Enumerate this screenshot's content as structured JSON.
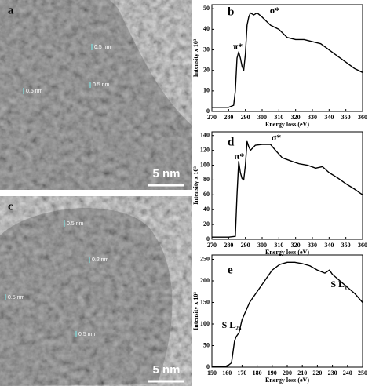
{
  "images": [
    {
      "panel_label": "a",
      "scale_bar": "5 nm",
      "annotations": [
        "0.5 nm",
        "0.5 nm",
        "0.5 nm"
      ]
    },
    {
      "panel_label": "c",
      "scale_bar": "5 nm",
      "annotations": [
        "0.5 nm",
        "0.2 nm",
        "0.5 nm",
        "0.5 nm"
      ]
    }
  ],
  "chart_data": [
    {
      "type": "line",
      "panel_label": "b",
      "x_label": "Energy loss (eV)",
      "y_label": "Intensity x 10³",
      "annotations": [
        "π*",
        "σ*"
      ],
      "x": [
        270,
        275,
        280,
        283,
        284,
        285,
        286,
        287,
        288,
        289,
        290,
        291,
        292,
        293,
        295,
        297,
        300,
        305,
        310,
        315,
        320,
        325,
        330,
        335,
        340,
        345,
        350,
        355,
        360
      ],
      "series": [
        {
          "color": "#000000",
          "values": [
            2,
            2,
            2,
            3,
            10,
            26,
            29,
            26,
            22,
            20,
            28,
            42,
            46,
            48,
            47,
            48,
            46,
            42,
            40,
            36,
            35,
            35,
            34,
            33,
            30,
            27,
            24,
            21,
            19
          ]
        }
      ],
      "xlim": [
        270,
        360
      ],
      "xticks": [
        270,
        280,
        290,
        300,
        310,
        320,
        330,
        340,
        350,
        360
      ],
      "ylim": [
        0,
        52
      ],
      "yticks": [
        0,
        10,
        20,
        30,
        40,
        50
      ]
    },
    {
      "type": "line",
      "panel_label": "d",
      "x_label": "Energy loss (eV)",
      "y_label": "Intensity x 10³",
      "annotations": [
        "π*",
        "σ*"
      ],
      "x": [
        270,
        275,
        280,
        284,
        285,
        286,
        287,
        288,
        289,
        290,
        291,
        292,
        293,
        296,
        300,
        305,
        308,
        312,
        318,
        322,
        327,
        332,
        336,
        340,
        345,
        350,
        355,
        360
      ],
      "series": [
        {
          "color": "#000000",
          "values": [
            3,
            3,
            3,
            4,
            60,
            105,
            90,
            82,
            80,
            100,
            132,
            125,
            120,
            127,
            128,
            128,
            120,
            110,
            105,
            102,
            100,
            96,
            98,
            90,
            83,
            75,
            68,
            60
          ]
        }
      ],
      "xlim": [
        270,
        360
      ],
      "xticks": [
        270,
        280,
        290,
        300,
        310,
        320,
        330,
        340,
        350,
        360
      ],
      "ylim": [
        0,
        145
      ],
      "yticks": [
        0,
        20,
        40,
        60,
        80,
        100,
        120,
        140
      ]
    },
    {
      "type": "line",
      "panel_label": "e",
      "x_label": "Energy loss (eV)",
      "y_label": "Intensity x 10³",
      "annotations": [
        "S L₂₃",
        "S L₁"
      ],
      "x": [
        150,
        155,
        160,
        163,
        165,
        166,
        168,
        170,
        175,
        180,
        185,
        190,
        195,
        200,
        205,
        210,
        215,
        220,
        225,
        228,
        230,
        235,
        240,
        245,
        250
      ],
      "series": [
        {
          "color": "#000000",
          "values": [
            2,
            2,
            2,
            10,
            60,
            70,
            80,
            110,
            150,
            175,
            200,
            225,
            238,
            243,
            243,
            240,
            235,
            225,
            218,
            225,
            215,
            200,
            185,
            170,
            150
          ]
        }
      ],
      "xlim": [
        150,
        250
      ],
      "xticks": [
        150,
        160,
        170,
        180,
        190,
        200,
        210,
        220,
        230,
        240,
        250
      ],
      "ylim": [
        0,
        260
      ],
      "yticks": [
        0,
        50,
        100,
        150,
        200,
        250
      ]
    }
  ]
}
